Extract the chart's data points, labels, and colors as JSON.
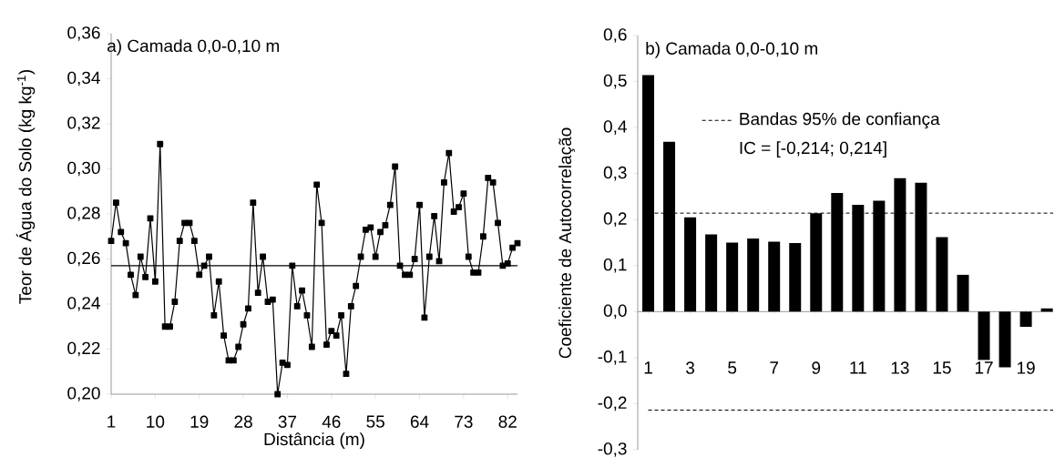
{
  "chart_data": [
    {
      "type": "line",
      "title": "a)  Camada 0,0-0,10 m",
      "xlabel": "Distância (m)",
      "ylabel": "Teor de Água do Solo (kg kg$^{-1}$)",
      "x": [
        1,
        2,
        3,
        4,
        5,
        6,
        7,
        8,
        9,
        10,
        11,
        12,
        13,
        14,
        15,
        16,
        17,
        18,
        19,
        20,
        21,
        22,
        23,
        24,
        25,
        26,
        27,
        28,
        29,
        30,
        31,
        32,
        33,
        34,
        35,
        36,
        37,
        38,
        39,
        40,
        41,
        42,
        43,
        44,
        45,
        46,
        47,
        48,
        49,
        50,
        51,
        52,
        53,
        54,
        55,
        56,
        57,
        58,
        59,
        60,
        61,
        62,
        63,
        64,
        65,
        66,
        67,
        68,
        69,
        70,
        71,
        72,
        73,
        74,
        75,
        76,
        77,
        78,
        79,
        80,
        81,
        82,
        83,
        84
      ],
      "series": [
        {
          "color": "#000000",
          "values": [
            0.268,
            0.285,
            0.272,
            0.267,
            0.253,
            0.244,
            0.261,
            0.252,
            0.278,
            0.25,
            0.311,
            0.23,
            0.23,
            0.241,
            0.268,
            0.276,
            0.276,
            0.268,
            0.253,
            0.257,
            0.261,
            0.235,
            0.25,
            0.226,
            0.215,
            0.215,
            0.221,
            0.231,
            0.238,
            0.285,
            0.245,
            0.261,
            0.241,
            0.242,
            0.2,
            0.214,
            0.213,
            0.257,
            0.239,
            0.246,
            0.235,
            0.221,
            0.293,
            0.276,
            0.222,
            0.228,
            0.226,
            0.235,
            0.209,
            0.239,
            0.248,
            0.261,
            0.273,
            0.274,
            0.261,
            0.272,
            0.275,
            0.284,
            0.301,
            0.257,
            0.253,
            0.253,
            0.26,
            0.284,
            0.234,
            0.261,
            0.279,
            0.259,
            0.294,
            0.307,
            0.281,
            0.283,
            0.289,
            0.261,
            0.254,
            0.254,
            0.27,
            0.296,
            0.294,
            0.276,
            0.257,
            0.258,
            0.265,
            0.267
          ]
        }
      ],
      "marker": "square",
      "line_style": "solid",
      "xlim": [
        1,
        84
      ],
      "xticks": [
        1,
        10,
        19,
        28,
        37,
        46,
        55,
        64,
        73,
        82
      ],
      "ylim": [
        0.2,
        0.36
      ],
      "yticks": [
        {
          "value": 0.2,
          "label": "0,20"
        },
        {
          "value": 0.22,
          "label": "0,22"
        },
        {
          "value": 0.24,
          "label": "0,24"
        },
        {
          "value": 0.26,
          "label": "0,26"
        },
        {
          "value": 0.28,
          "label": "0,28"
        },
        {
          "value": 0.3,
          "label": "0,30"
        },
        {
          "value": 0.32,
          "label": "0,32"
        },
        {
          "value": 0.34,
          "label": "0,34"
        },
        {
          "value": 0.36,
          "label": "0,36"
        }
      ],
      "ref_lines": [
        {
          "axis": "y",
          "value": 0.257,
          "color": "#000000",
          "line_style": "solid"
        }
      ]
    },
    {
      "type": "bar",
      "title": "b)  Camada 0,0-0,10 m",
      "ylabel": "Coeficiente de Autocorrelação",
      "categories": [
        "1",
        null,
        "3",
        null,
        "5",
        null,
        "7",
        null,
        "9",
        null,
        "11",
        null,
        "13",
        null,
        "15",
        null,
        "17",
        null,
        "19",
        null
      ],
      "series": [
        {
          "color": "#000000",
          "values": [
            0.514,
            0.369,
            0.205,
            0.168,
            0.15,
            0.159,
            0.152,
            0.149,
            0.214,
            0.258,
            0.232,
            0.241,
            0.29,
            0.28,
            0.162,
            0.08,
            -0.105,
            -0.121,
            -0.033,
            0.007
          ]
        }
      ],
      "ylim": [
        -0.3,
        0.6
      ],
      "yticks": [
        {
          "value": -0.3,
          "label": "-0,3"
        },
        {
          "value": -0.2,
          "label": "-0,2"
        },
        {
          "value": -0.1,
          "label": "-0,1"
        },
        {
          "value": 0,
          "label": "0,0"
        },
        {
          "value": 0.1,
          "label": "0,1"
        },
        {
          "value": 0.2,
          "label": "0,2"
        },
        {
          "value": 0.3,
          "label": "0,3"
        },
        {
          "value": 0.4,
          "label": "0,4"
        },
        {
          "value": 0.5,
          "label": "0,5"
        },
        {
          "value": 0.6,
          "label": "0,6"
        }
      ],
      "ref_lines": [
        {
          "axis": "y",
          "value": 0.214,
          "label": "Bandas 95% de confiança",
          "color": "#000000",
          "line_style": "dashed"
        },
        {
          "axis": "y",
          "value": -0.214,
          "color": "#000000",
          "line_style": "dashed"
        }
      ],
      "annotations": [
        "IC = [-0,214; 0,214]"
      ]
    }
  ]
}
